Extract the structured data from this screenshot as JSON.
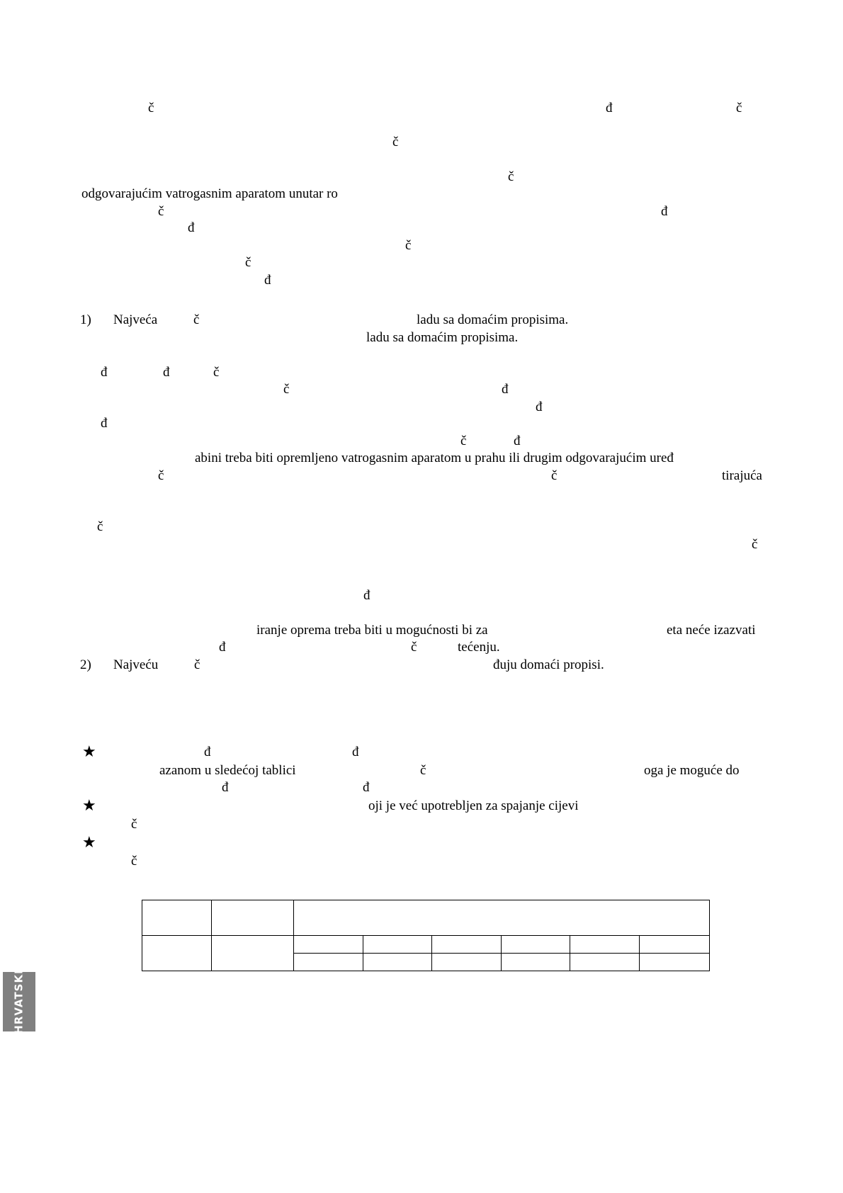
{
  "fragments": [
    "č",
    "đ",
    "č",
    "č",
    "č",
    "odgovarajućim vatrogasnim aparatom unutar ro",
    "č",
    "đ",
    "đ",
    "č",
    "č",
    "đ",
    "č",
    "ladu sa domaćim propisima.",
    "ladu sa domaćim propisima.",
    "đ",
    "đ",
    "č",
    "č",
    "đ",
    "đ",
    "đ",
    "č",
    "đ",
    "abini treba biti opremljeno vatrogasnim aparatom u prahu ili drugim odgovarajućim uređ",
    "č",
    "č",
    "tirajuća",
    "č",
    "č",
    "đ",
    "iranje oprema treba biti u mogućnosti bi za",
    "eta neće izazvati",
    "đ",
    "č",
    "tećenju.",
    "č",
    "đuju domaći propisi.",
    "đ",
    "đ",
    "azanom u sledećoj tablici",
    "č",
    "oga je moguće do",
    "đ",
    "đ",
    "oji je već upotrebljen za spajanje cijevi",
    "č",
    "č"
  ],
  "list": [
    {
      "number": "1)",
      "word": "Najveća"
    },
    {
      "number": "2)",
      "word": "Najveću"
    }
  ],
  "notes": {
    "bullet_icon": "star-icon",
    "bullet_glyph": "★"
  },
  "side_tab": {
    "label": "HRVATSKI",
    "color": "#808080"
  }
}
